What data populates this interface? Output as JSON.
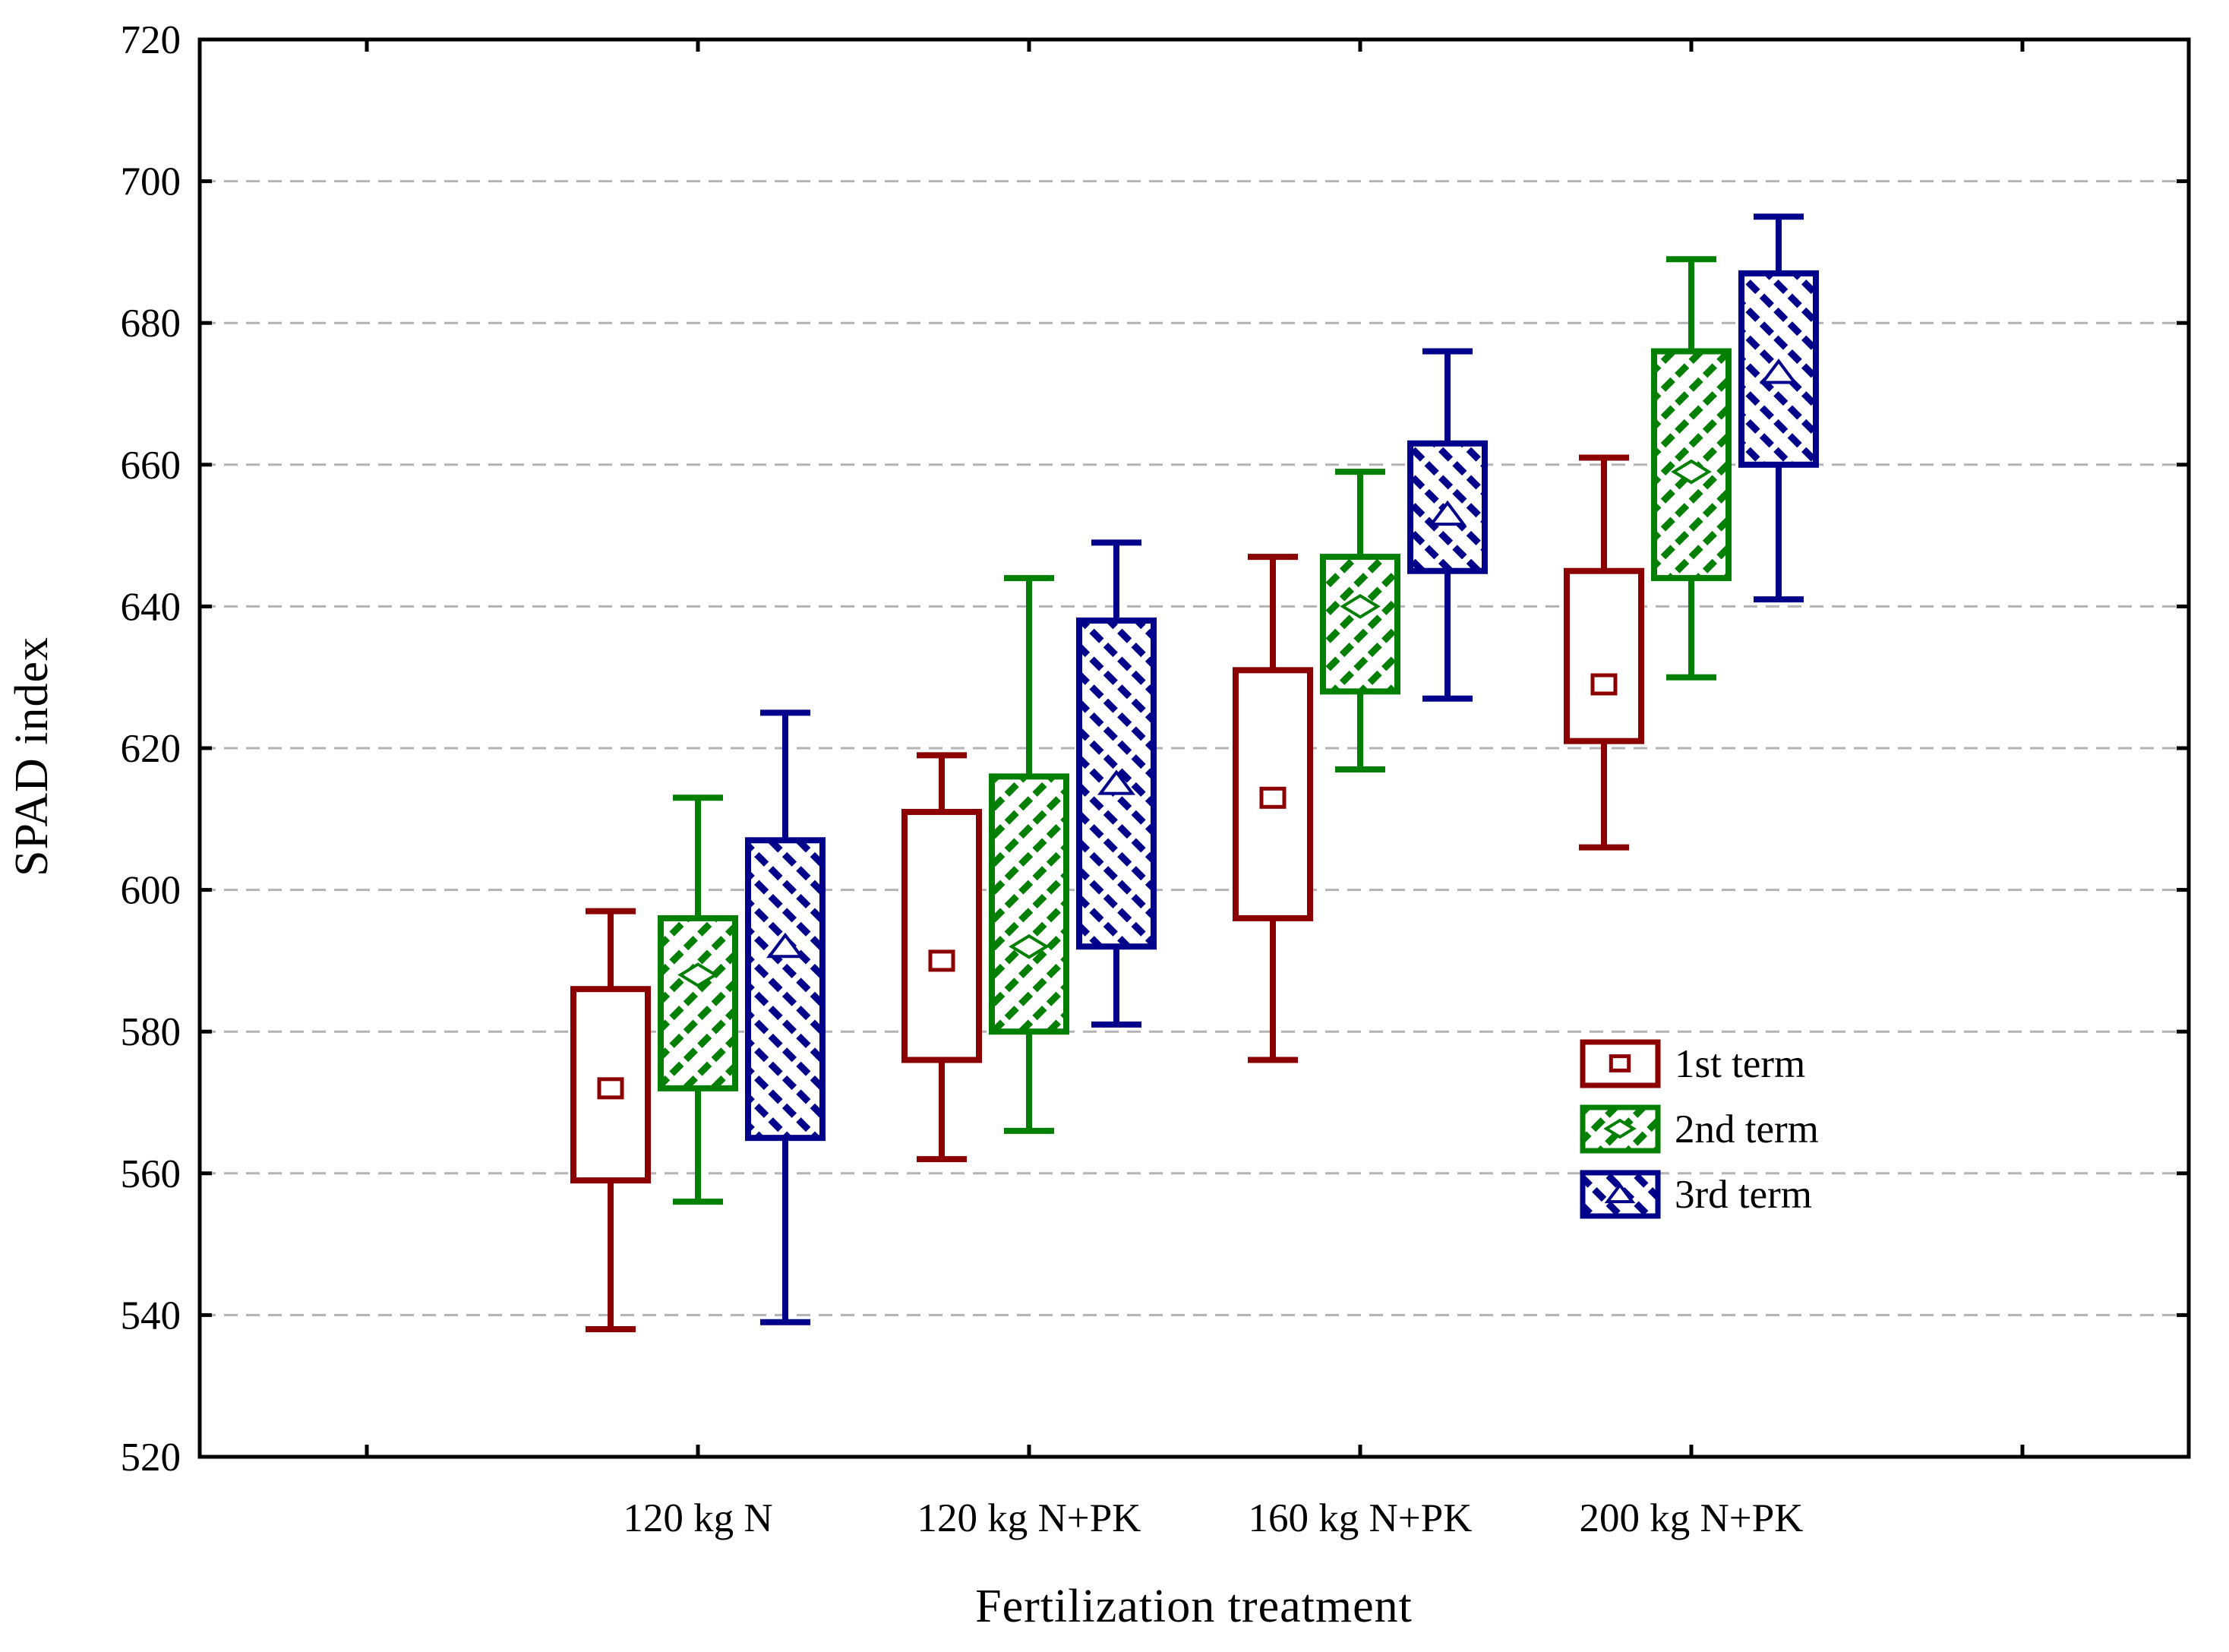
{
  "chart_data": {
    "type": "boxplot",
    "title": "",
    "xlabel": "Fertilization treatment",
    "ylabel": "SPAD index",
    "ylim": [
      520,
      720
    ],
    "yticks": [
      520,
      540,
      560,
      580,
      600,
      620,
      640,
      660,
      680,
      700,
      720
    ],
    "grid": "horizontal-dashed",
    "categories": [
      "120 kg N",
      "120 kg N+PK",
      "160 kg N+PK",
      "200 kg N+PK"
    ],
    "series": [
      {
        "name": "1st term",
        "color": "#8b0000",
        "hatch": "none",
        "marker": "square",
        "boxes": [
          {
            "whisker_low": 538,
            "q1": 559,
            "mid": 572,
            "q3": 586,
            "whisker_high": 597
          },
          {
            "whisker_low": 562,
            "q1": 576,
            "mid": 590,
            "q3": 611,
            "whisker_high": 619
          },
          {
            "whisker_low": 576,
            "q1": 596,
            "mid": 613,
            "q3": 631,
            "whisker_high": 647
          },
          {
            "whisker_low": 606,
            "q1": 621,
            "mid": 629,
            "q3": 645,
            "whisker_high": 661
          }
        ]
      },
      {
        "name": "2nd term",
        "color": "#038003",
        "hatch": "/",
        "marker": "diamond",
        "boxes": [
          {
            "whisker_low": 556,
            "q1": 572,
            "mid": 588,
            "q3": 596,
            "whisker_high": 613
          },
          {
            "whisker_low": 566,
            "q1": 580,
            "mid": 592,
            "q3": 616,
            "whisker_high": 644
          },
          {
            "whisker_low": 617,
            "q1": 628,
            "mid": 640,
            "q3": 647,
            "whisker_high": 659
          },
          {
            "whisker_low": 630,
            "q1": 644,
            "mid": 659,
            "q3": 676,
            "whisker_high": 689
          }
        ]
      },
      {
        "name": "3rd term",
        "color": "#00008b",
        "hatch": "\\",
        "marker": "triangle",
        "boxes": [
          {
            "whisker_low": 539,
            "q1": 565,
            "mid": 592,
            "q3": 607,
            "whisker_high": 625
          },
          {
            "whisker_low": 581,
            "q1": 592,
            "mid": 615,
            "q3": 638,
            "whisker_high": 649
          },
          {
            "whisker_low": 627,
            "q1": 645,
            "mid": 653,
            "q3": 663,
            "whisker_high": 676
          },
          {
            "whisker_low": 641,
            "q1": 660,
            "mid": 673,
            "q3": 687,
            "whisker_high": 695
          }
        ]
      }
    ],
    "legend": {
      "position": "inside-right",
      "entries": [
        "1st term",
        "2nd term",
        "3rd term"
      ]
    }
  },
  "colors": {
    "axis": "#000000",
    "gridline": "#b3b3b3",
    "background": "#ffffff",
    "series_1st_term": "#8b0000",
    "series_2nd_term": "#038003",
    "series_3rd_term": "#00008b"
  }
}
